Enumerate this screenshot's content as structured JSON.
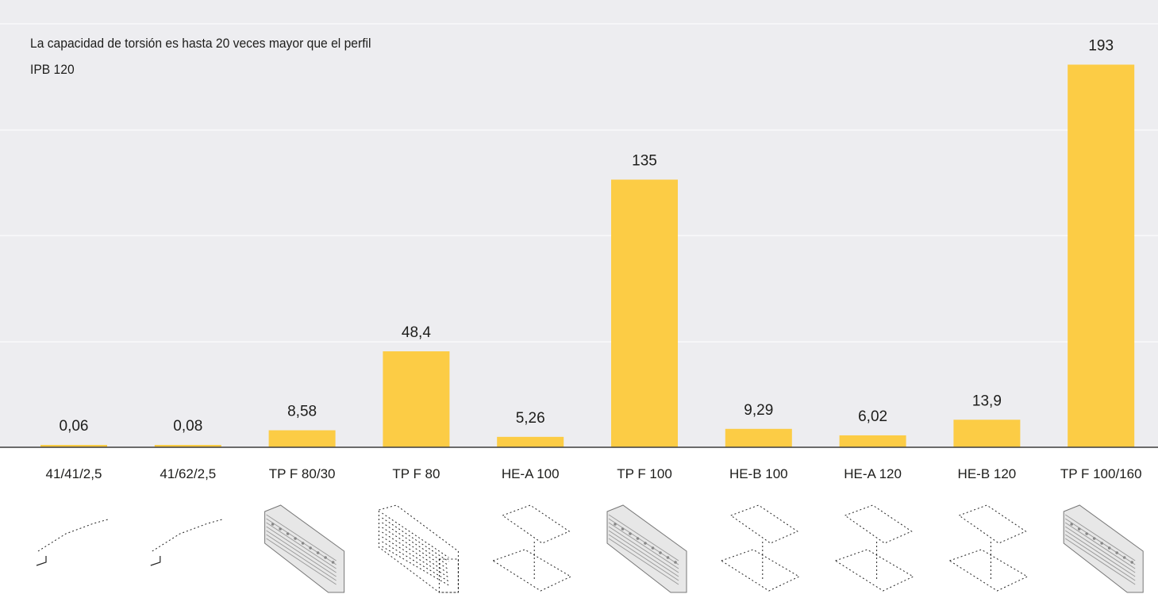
{
  "annotation": {
    "line1": "La capacidad de torsión es hasta 20 veces mayor que el perfil",
    "line2": "IPB 120"
  },
  "colors": {
    "bar": "#fccc45",
    "background": "#ededf0",
    "grid": "#ffffff",
    "axis": "#3c3c3c",
    "text": "#1d1d1b"
  },
  "chart_data": {
    "type": "bar",
    "categories": [
      "41/41/2,5",
      "41/62/2,5",
      "TP F 80/30",
      "TP F 80",
      "HE-A 100",
      "TP F 100",
      "HE-B 100",
      "HE-A 120",
      "HE-B 120",
      "TP F 100/160"
    ],
    "values": [
      0.06,
      0.08,
      8.58,
      48.4,
      5.26,
      135,
      9.29,
      6.02,
      13.9,
      193
    ],
    "value_labels": [
      "0,06",
      "0,08",
      "8,58",
      "48,4",
      "5,26",
      "135",
      "9,29",
      "6,02",
      "13,9",
      "193"
    ],
    "profile_icons": [
      "strut-channel-icon",
      "strut-channel-icon",
      "perforated-rail-icon",
      "square-profile-icon",
      "i-beam-icon",
      "perforated-rail-icon",
      "i-beam-icon",
      "i-beam-icon",
      "i-beam-icon",
      "perforated-rail-icon"
    ],
    "ylim": [
      0,
      212
    ],
    "grid": true,
    "title": "",
    "xlabel": "",
    "ylabel": ""
  }
}
